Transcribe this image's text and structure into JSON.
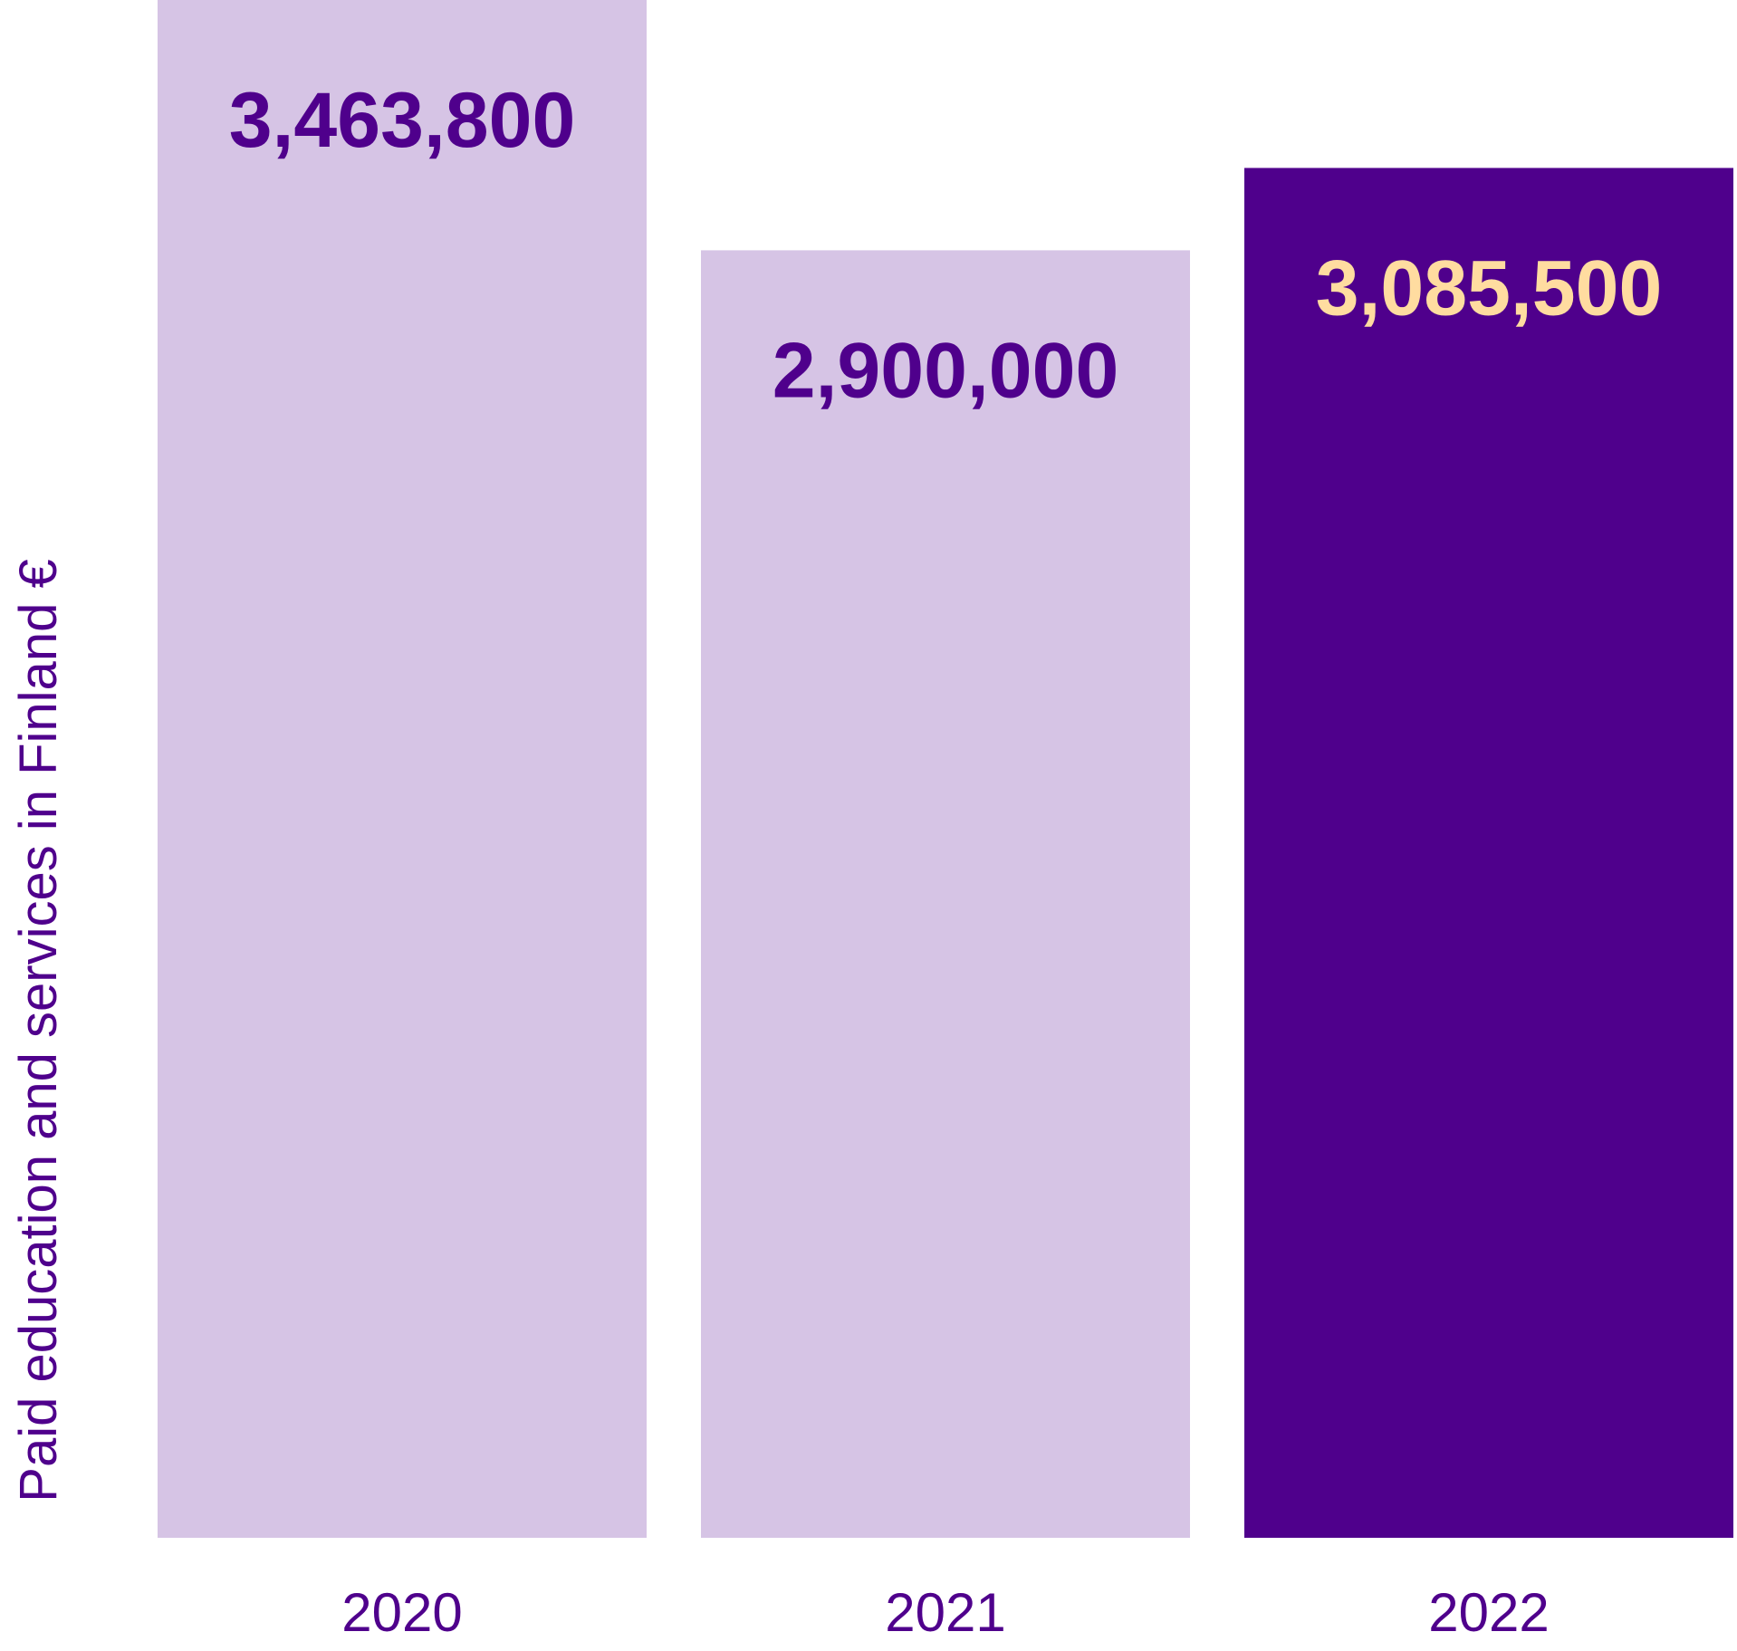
{
  "chart_data": {
    "type": "bar",
    "categories": [
      "2020",
      "2021",
      "2022"
    ],
    "values": [
      3463800,
      2900000,
      3085500
    ],
    "value_labels": [
      "3,463,800",
      "2,900,000",
      "3,085,500"
    ],
    "title": "",
    "xlabel": "",
    "ylabel": "Paid education and services in Finland €",
    "ylim": [
      0,
      3463800
    ],
    "grid": false,
    "bar_colors": [
      "#d6c4e5",
      "#d6c4e5",
      "#4f008c"
    ],
    "label_colors": [
      "#4f008c",
      "#4f008c",
      "#ffdca0"
    ]
  }
}
